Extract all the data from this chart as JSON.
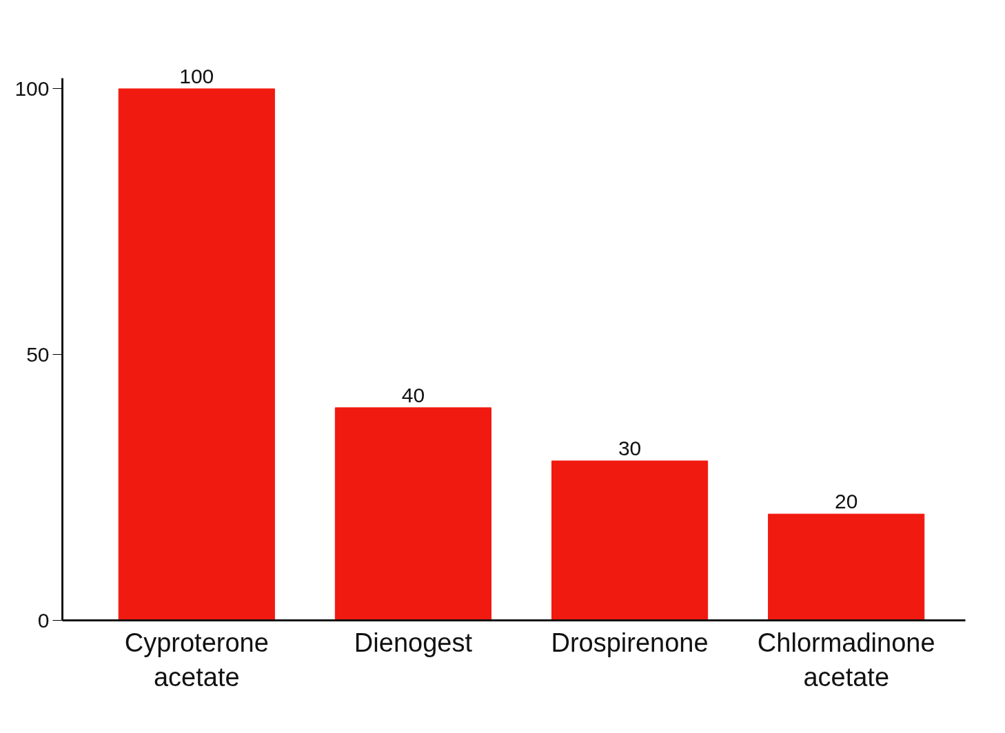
{
  "chart_data": {
    "type": "bar",
    "categories": [
      "Cyproterone acetate",
      "Dienogest",
      "Drospirenone",
      "Chlormadinone acetate"
    ],
    "values": [
      100,
      40,
      30,
      20
    ],
    "color": "#f01a10",
    "ylim": [
      0,
      102
    ],
    "yticks": [
      0,
      50,
      100
    ],
    "data_labels": true,
    "grid": false
  }
}
